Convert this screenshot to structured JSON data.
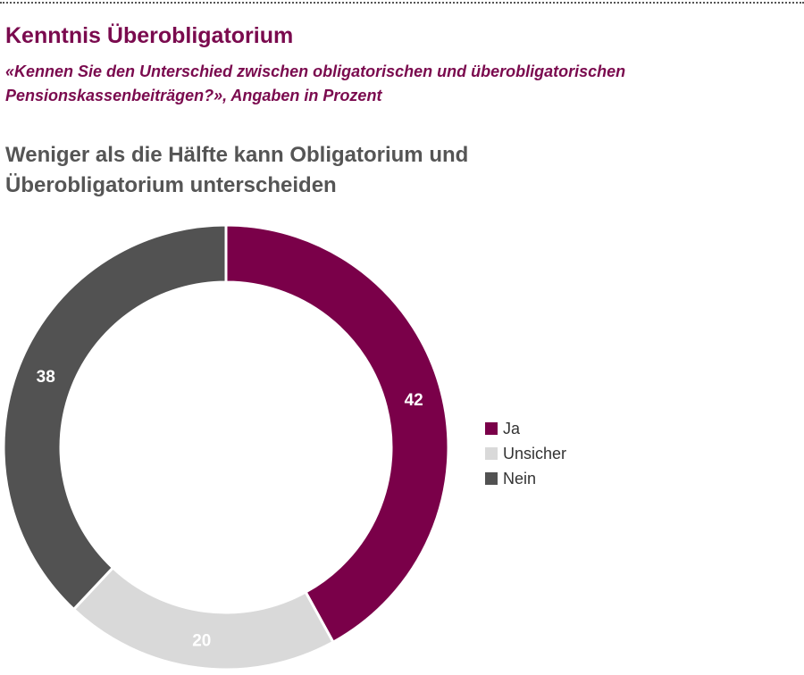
{
  "title": "Kenntnis Überobligatorium",
  "subtitle": "«Kennen Sie den Unterschied zwischen obligatorischen und überobligatorischen Pensionskassenbeiträgen?», Angaben in Prozent",
  "headline": "Weniger als die Hälfte kann Obligatorium und Überobligatorium unterscheiden",
  "chart_data": {
    "type": "pie",
    "variant": "donut",
    "categories": [
      "Ja",
      "Unsicher",
      "Nein"
    ],
    "values": [
      42,
      20,
      38
    ],
    "colors": [
      "#7a0049",
      "#d9d9d9",
      "#525252"
    ],
    "label_colors": [
      "#ffffff",
      "#ffffff",
      "#ffffff"
    ],
    "legend": "right"
  }
}
